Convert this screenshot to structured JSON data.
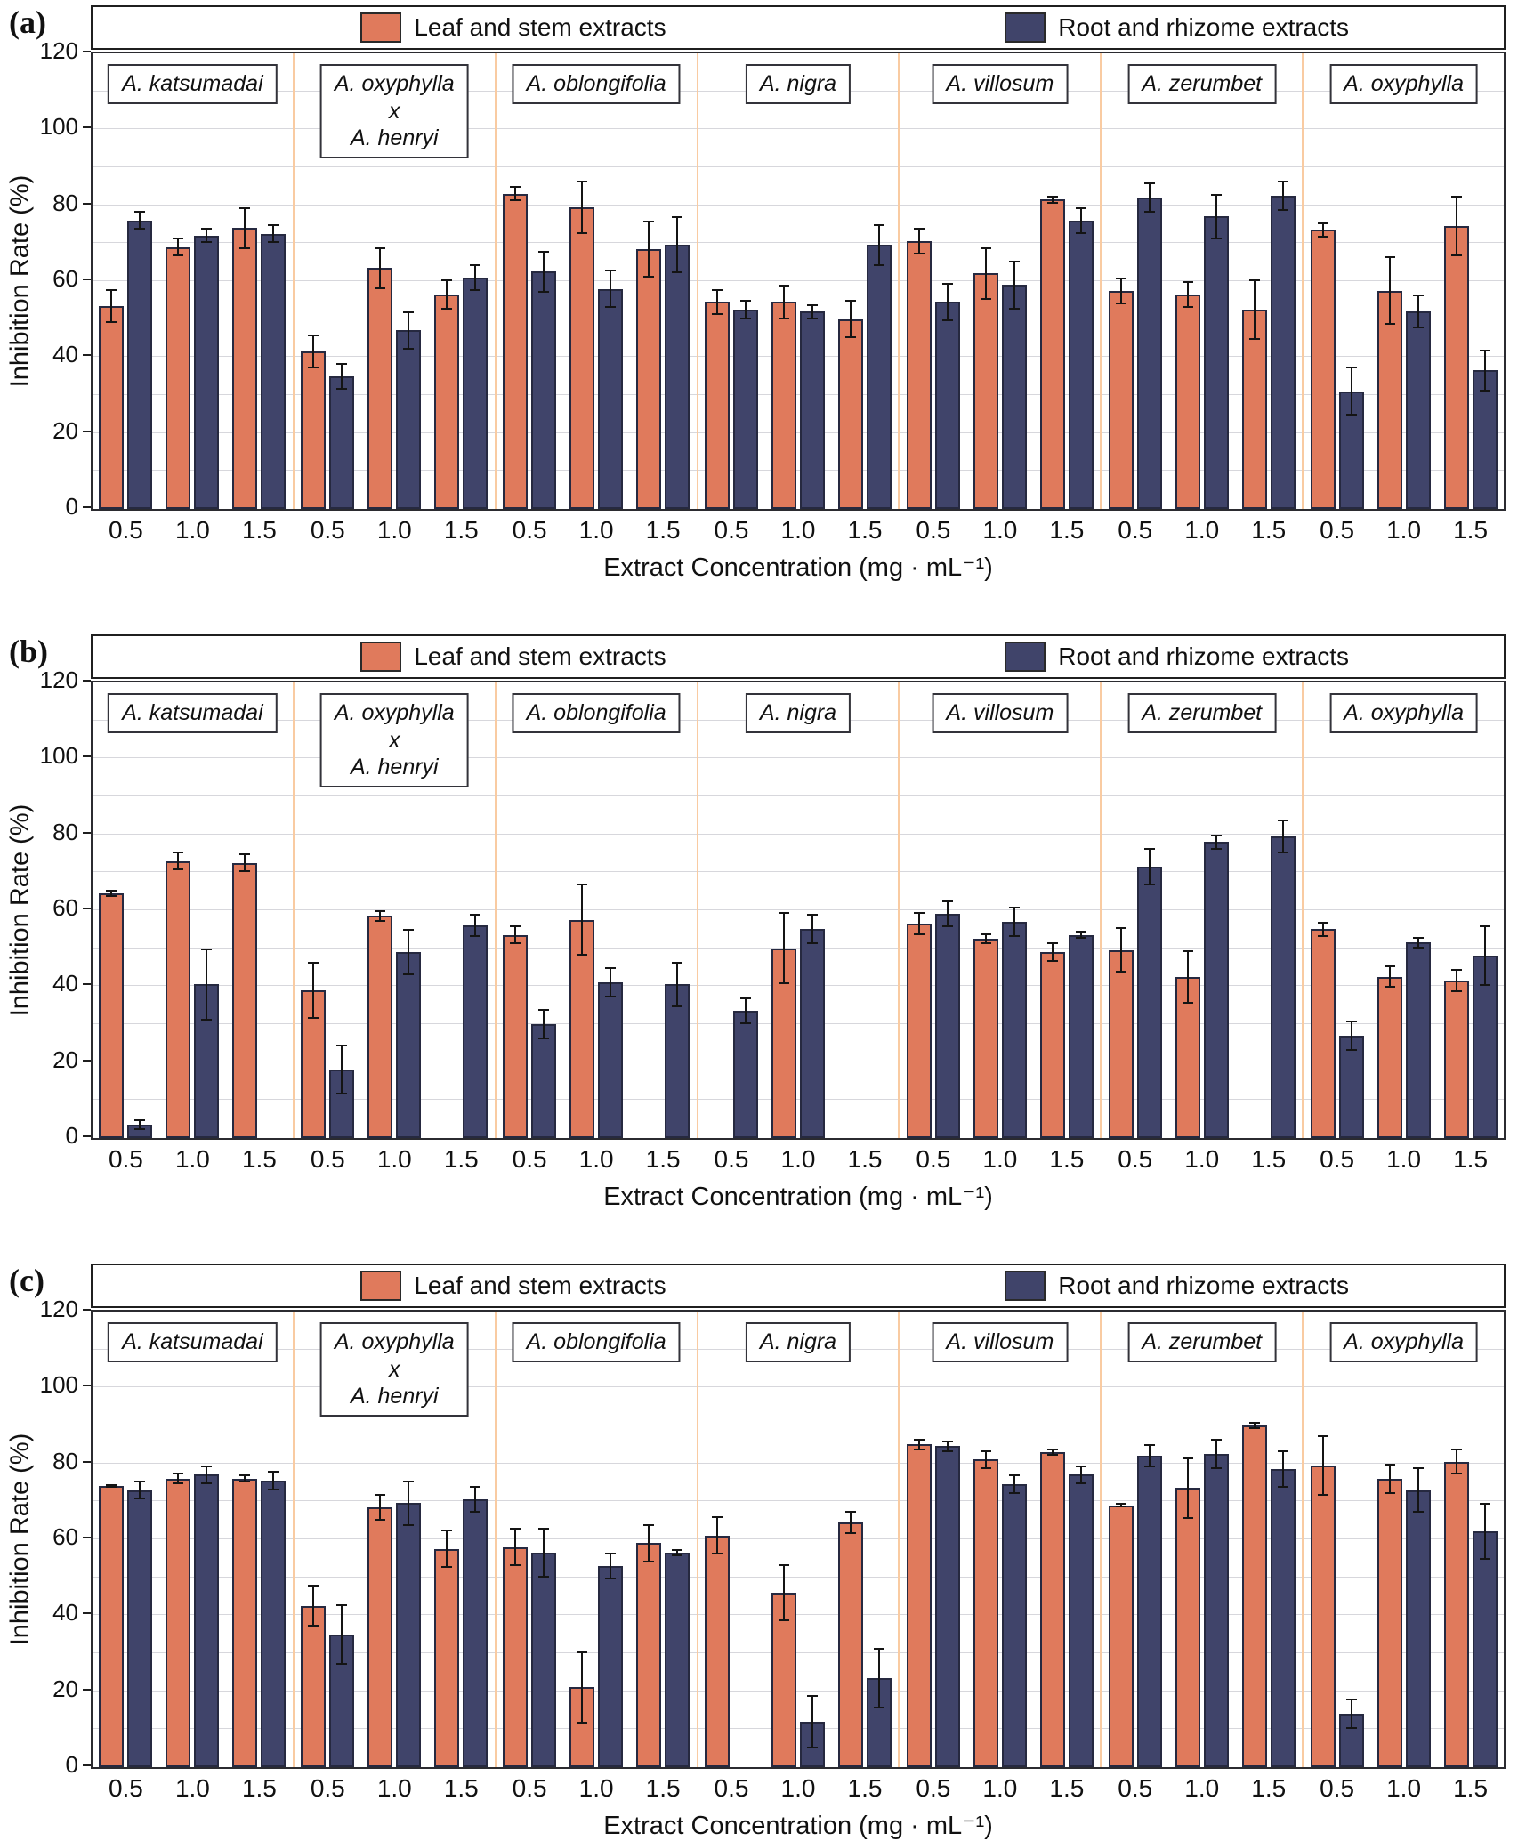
{
  "legend": {
    "leaf_label": "Leaf and stem extracts",
    "root_label": "Root and rhizome extracts",
    "leaf_color": "#E07A5C",
    "root_color": "#40446A"
  },
  "axes": {
    "y_label": "Inhibition Rate (%)",
    "x_label": "Extract Concentration (mg · mL⁻¹)",
    "y_ticks": [
      0,
      20,
      40,
      60,
      80,
      100,
      120
    ],
    "y_max": 120,
    "concentrations": [
      "0.5",
      "1.0",
      "1.5"
    ]
  },
  "chart_data": [
    {
      "panel": "(a)",
      "type": "bar",
      "ylabel": "Inhibition Rate (%)",
      "xlabel": "Extract Concentration (mg · mL⁻¹)",
      "ylim": [
        0,
        120
      ],
      "x": [
        "0.5",
        "1.0",
        "1.5"
      ],
      "series_names": [
        "Leaf and stem extracts",
        "Root and rhizome extracts"
      ],
      "groups": [
        {
          "species": [
            "A. katsumadai"
          ],
          "leaf": [
            53.5,
            69,
            74
          ],
          "leaf_err": [
            4.5,
            2.5,
            5.5
          ],
          "root": [
            76,
            72,
            72.5
          ],
          "root_err": [
            2.5,
            2,
            2.5
          ]
        },
        {
          "species": [
            "A. oxyphylla",
            "x",
            "A. henryi"
          ],
          "leaf": [
            41.5,
            63.5,
            56.5
          ],
          "leaf_err": [
            4.5,
            5.5,
            4
          ],
          "root": [
            35,
            47,
            61
          ],
          "root_err": [
            3.5,
            5,
            3.5
          ]
        },
        {
          "species": [
            "A. oblongifolia"
          ],
          "leaf": [
            83,
            79.5,
            68.5
          ],
          "leaf_err": [
            2,
            7,
            7.5
          ],
          "root": [
            62.5,
            58,
            69.5
          ],
          "root_err": [
            5.5,
            5,
            7.5
          ]
        },
        {
          "species": [
            "A. nigra"
          ],
          "leaf": [
            54.5,
            54.5,
            50
          ],
          "leaf_err": [
            3.5,
            4.5,
            5
          ],
          "root": [
            52.5,
            52,
            69.5
          ],
          "root_err": [
            2.5,
            2,
            5.5
          ]
        },
        {
          "species": [
            "A. villosum"
          ],
          "leaf": [
            70.5,
            62,
            81.5
          ],
          "leaf_err": [
            3.5,
            7,
            1
          ],
          "root": [
            54.5,
            59,
            76
          ],
          "root_err": [
            5,
            6.5,
            3.5
          ]
        },
        {
          "species": [
            "A. zerumbet"
          ],
          "leaf": [
            57.5,
            56.5,
            52.5
          ],
          "leaf_err": [
            3.5,
            3.5,
            8
          ],
          "root": [
            82,
            77,
            82.5
          ],
          "root_err": [
            4,
            6,
            4
          ]
        },
        {
          "species": [
            "A. oxyphylla"
          ],
          "leaf": [
            73.5,
            57.5,
            74.5
          ],
          "leaf_err": [
            2,
            9,
            8
          ],
          "root": [
            31,
            52,
            36.5
          ],
          "root_err": [
            6.5,
            4.5,
            5.5
          ]
        }
      ]
    },
    {
      "panel": "(b)",
      "type": "bar",
      "ylabel": "Inhibition Rate (%)",
      "xlabel": "Extract Concentration (mg · mL⁻¹)",
      "ylim": [
        0,
        120
      ],
      "x": [
        "0.5",
        "1.0",
        "1.5"
      ],
      "series_names": [
        "Leaf and stem extracts",
        "Root and rhizome extracts"
      ],
      "groups": [
        {
          "species": [
            "A. katsumadai"
          ],
          "leaf": [
            64.5,
            73,
            72.5
          ],
          "leaf_err": [
            1,
            2.5,
            2.5
          ],
          "root": [
            3.5,
            40.5,
            null
          ],
          "root_err": [
            1.5,
            9.5,
            null
          ]
        },
        {
          "species": [
            "A. oxyphylla",
            "x",
            "A. henryi"
          ],
          "leaf": [
            39,
            58.5,
            null
          ],
          "leaf_err": [
            7.5,
            1.5,
            null
          ],
          "root": [
            18,
            49,
            56
          ],
          "root_err": [
            6.5,
            6,
            3
          ]
        },
        {
          "species": [
            "A. oblongifolia"
          ],
          "leaf": [
            53.5,
            57.5,
            null
          ],
          "leaf_err": [
            2.5,
            9.5,
            null
          ],
          "root": [
            30,
            41,
            40.5
          ],
          "root_err": [
            4,
            4,
            6
          ]
        },
        {
          "species": [
            "A. nigra"
          ],
          "leaf": [
            null,
            50,
            null
          ],
          "leaf_err": [
            null,
            9.5,
            null
          ],
          "root": [
            33.5,
            55,
            null
          ],
          "root_err": [
            3.5,
            4,
            null
          ]
        },
        {
          "species": [
            "A. villosum"
          ],
          "leaf": [
            56.5,
            52.5,
            49
          ],
          "leaf_err": [
            3,
            1.5,
            2.5
          ],
          "root": [
            59,
            57,
            53.5
          ],
          "root_err": [
            3.5,
            4,
            1
          ]
        },
        {
          "species": [
            "A. zerumbet"
          ],
          "leaf": [
            49.5,
            42.5,
            null
          ],
          "leaf_err": [
            6,
            7,
            null
          ],
          "root": [
            71.5,
            78,
            79.5
          ],
          "root_err": [
            5,
            2,
            4.5
          ]
        },
        {
          "species": [
            "A. oxyphylla"
          ],
          "leaf": [
            55,
            42.5,
            41.5
          ],
          "leaf_err": [
            2,
            3,
            3
          ],
          "root": [
            27,
            51.5,
            48
          ],
          "root_err": [
            4,
            1.5,
            8
          ]
        }
      ]
    },
    {
      "panel": "(c)",
      "type": "bar",
      "ylabel": "Inhibition Rate (%)",
      "xlabel": "Extract Concentration (mg · mL⁻¹)",
      "ylim": [
        0,
        120
      ],
      "x": [
        "0.5",
        "1.0",
        "1.5"
      ],
      "series_names": [
        "Leaf and stem extracts",
        "Root and rhizome extracts"
      ],
      "groups": [
        {
          "species": [
            "A. katsumadai"
          ],
          "leaf": [
            74,
            76,
            76
          ],
          "leaf_err": [
            0.5,
            1.5,
            1
          ],
          "root": [
            73,
            77,
            75.5
          ],
          "root_err": [
            2.5,
            2.5,
            2.5
          ]
        },
        {
          "species": [
            "A. oxyphylla",
            "x",
            "A. henryi"
          ],
          "leaf": [
            42.5,
            68.5,
            57.5
          ],
          "leaf_err": [
            5.5,
            3.5,
            5
          ],
          "root": [
            35,
            69.5,
            70.5
          ],
          "root_err": [
            8,
            6,
            3.5
          ]
        },
        {
          "species": [
            "A. oblongifolia"
          ],
          "leaf": [
            58,
            21,
            59
          ],
          "leaf_err": [
            5,
            9.5,
            5
          ],
          "root": [
            56.5,
            53,
            56.5
          ],
          "root_err": [
            6.5,
            3.5,
            1
          ]
        },
        {
          "species": [
            "A. nigra"
          ],
          "leaf": [
            61,
            46,
            64.5
          ],
          "leaf_err": [
            5,
            7.5,
            3
          ],
          "root": [
            null,
            12,
            23.5
          ],
          "root_err": [
            null,
            7,
            8
          ]
        },
        {
          "species": [
            "A. villosum"
          ],
          "leaf": [
            85,
            81,
            83
          ],
          "leaf_err": [
            1.5,
            2.5,
            1
          ],
          "root": [
            84.5,
            74.5,
            77
          ],
          "root_err": [
            1.5,
            2.5,
            2.5
          ]
        },
        {
          "species": [
            "A. zerumbet"
          ],
          "leaf": [
            69,
            73.5,
            90
          ],
          "leaf_err": [
            0.5,
            8,
            1
          ],
          "root": [
            82,
            82.5,
            78.5
          ],
          "root_err": [
            3,
            4,
            5
          ]
        },
        {
          "species": [
            "A. oxyphylla"
          ],
          "leaf": [
            79.5,
            76,
            80.5
          ],
          "leaf_err": [
            8,
            4,
            3.5
          ],
          "root": [
            14,
            73,
            62
          ],
          "root_err": [
            4,
            6,
            7.5
          ]
        }
      ]
    }
  ]
}
